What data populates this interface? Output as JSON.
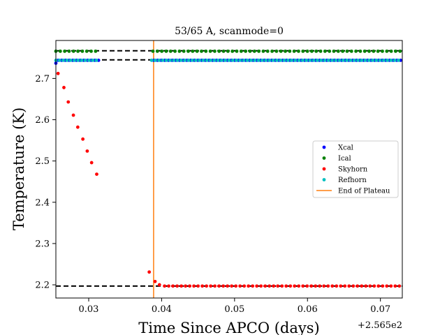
{
  "chart_data": {
    "type": "scatter",
    "title": "53/65 A, scanmode=0",
    "xlabel": "Time Since APCO (days)",
    "ylabel": "Temperature (K)",
    "x_offset_label": "+2.565e2",
    "xlim": [
      256.5255,
      256.573
    ],
    "ylim": [
      2.168,
      2.792
    ],
    "x_ticks": [
      256.53,
      256.54,
      256.55,
      256.56,
      256.57
    ],
    "x_tick_labels": [
      "0.03",
      "0.04",
      "0.05",
      "0.06",
      "0.07"
    ],
    "y_ticks": [
      2.2,
      2.3,
      2.4,
      2.5,
      2.6,
      2.7
    ],
    "y_tick_labels": [
      "2.2",
      "2.3",
      "2.4",
      "2.5",
      "2.6",
      "2.7"
    ],
    "legend_position": "center-right",
    "grid": false,
    "series": [
      {
        "name": "Xcal",
        "color": "#0000ff",
        "first_point": [
          256.5255,
          2.737
        ],
        "x_start": 256.5258,
        "x_end": 256.5728,
        "x_step": 0.000505,
        "gap": [
          256.5315,
          256.5385
        ],
        "y": 2.744
      },
      {
        "name": "Ical",
        "color": "#008000",
        "x_start": 256.5255,
        "x_end": 256.5728,
        "x_step": 0.000605,
        "gap": [
          256.5315,
          256.5385
        ],
        "y": 2.766
      },
      {
        "name": "Skyhorn",
        "color": "#ff0000",
        "points": [
          [
            256.5258,
            2.712
          ],
          [
            256.5266,
            2.678
          ],
          [
            256.5272,
            2.643
          ],
          [
            256.5279,
            2.611
          ],
          [
            256.5285,
            2.582
          ],
          [
            256.5292,
            2.553
          ],
          [
            256.5298,
            2.524
          ],
          [
            256.5304,
            2.496
          ],
          [
            256.5311,
            2.468
          ],
          [
            256.5383,
            2.231
          ],
          [
            256.5391,
            2.208
          ],
          [
            256.5397,
            2.2
          ]
        ],
        "plateau_x_start": 256.5404,
        "plateau_x_end": 256.5728,
        "plateau_step": 0.000575,
        "plateau_y": 2.197
      },
      {
        "name": "Refhorn",
        "color": "#00bfbf",
        "x_start": 256.5255,
        "x_end": 256.5728,
        "x_step": 0.000505,
        "gap": [
          256.5315,
          256.5385
        ],
        "y": 2.744
      },
      {
        "name": "End of Plateau",
        "color": "#ff7f0e",
        "type": "vline",
        "x": 256.5389
      }
    ],
    "reference_lines": [
      {
        "y": 2.767,
        "segments": [
          [
            256.5255,
            256.573
          ]
        ]
      },
      {
        "y": 2.745,
        "segments": [
          [
            256.5255,
            256.573
          ]
        ]
      },
      {
        "y": 2.197,
        "segments": [
          [
            256.5255,
            256.573
          ]
        ]
      }
    ]
  }
}
